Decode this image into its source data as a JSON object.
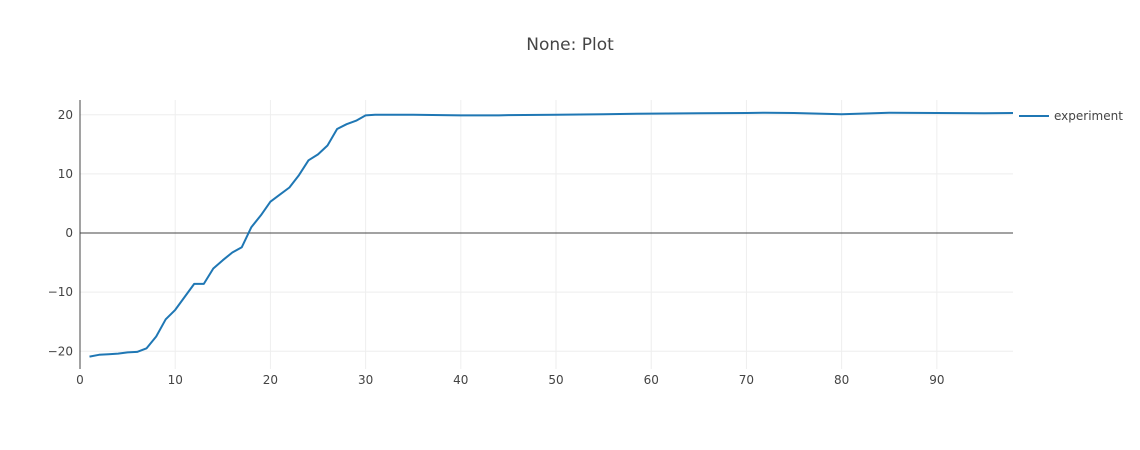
{
  "chart_data": {
    "type": "line",
    "title": "None: Plot",
    "xlabel": "",
    "ylabel": "",
    "xlim": [
      0,
      98
    ],
    "ylim": [
      -23,
      22.5
    ],
    "x_ticks": [
      0,
      10,
      20,
      30,
      40,
      50,
      60,
      70,
      80,
      90
    ],
    "y_ticks": [
      -20,
      -10,
      0,
      10,
      20
    ],
    "x_tick_labels": [
      "0",
      "10",
      "20",
      "30",
      "40",
      "50",
      "60",
      "70",
      "80",
      "90"
    ],
    "y_tick_labels": [
      "−20",
      "−10",
      "0",
      "10",
      "20"
    ],
    "grid": true,
    "legend_position": "right",
    "series": [
      {
        "name": "experiment",
        "color": "#1f77b4",
        "x": [
          1,
          2,
          3,
          4,
          5,
          6,
          7,
          8,
          9,
          10,
          11,
          12,
          13,
          14,
          15,
          16,
          17,
          18,
          19,
          20,
          21,
          22,
          23,
          24,
          25,
          26,
          27,
          28,
          29,
          30,
          31,
          35,
          40,
          44,
          45,
          50,
          55,
          60,
          65,
          70,
          72,
          75,
          80,
          85,
          90,
          95,
          98
        ],
        "y": [
          -20.9,
          -20.6,
          -20.5,
          -20.4,
          -20.2,
          -20.1,
          -19.5,
          -17.5,
          -14.6,
          -13.0,
          -10.8,
          -8.6,
          -8.6,
          -6.0,
          -4.6,
          -3.3,
          -2.4,
          1.0,
          3.0,
          5.3,
          6.5,
          7.7,
          9.8,
          12.3,
          13.3,
          14.8,
          17.6,
          18.4,
          19.0,
          19.9,
          20.0,
          20.0,
          19.9,
          19.9,
          19.95,
          20.0,
          20.1,
          20.2,
          20.25,
          20.3,
          20.35,
          20.3,
          20.1,
          20.35,
          20.3,
          20.25,
          20.3
        ]
      }
    ]
  }
}
